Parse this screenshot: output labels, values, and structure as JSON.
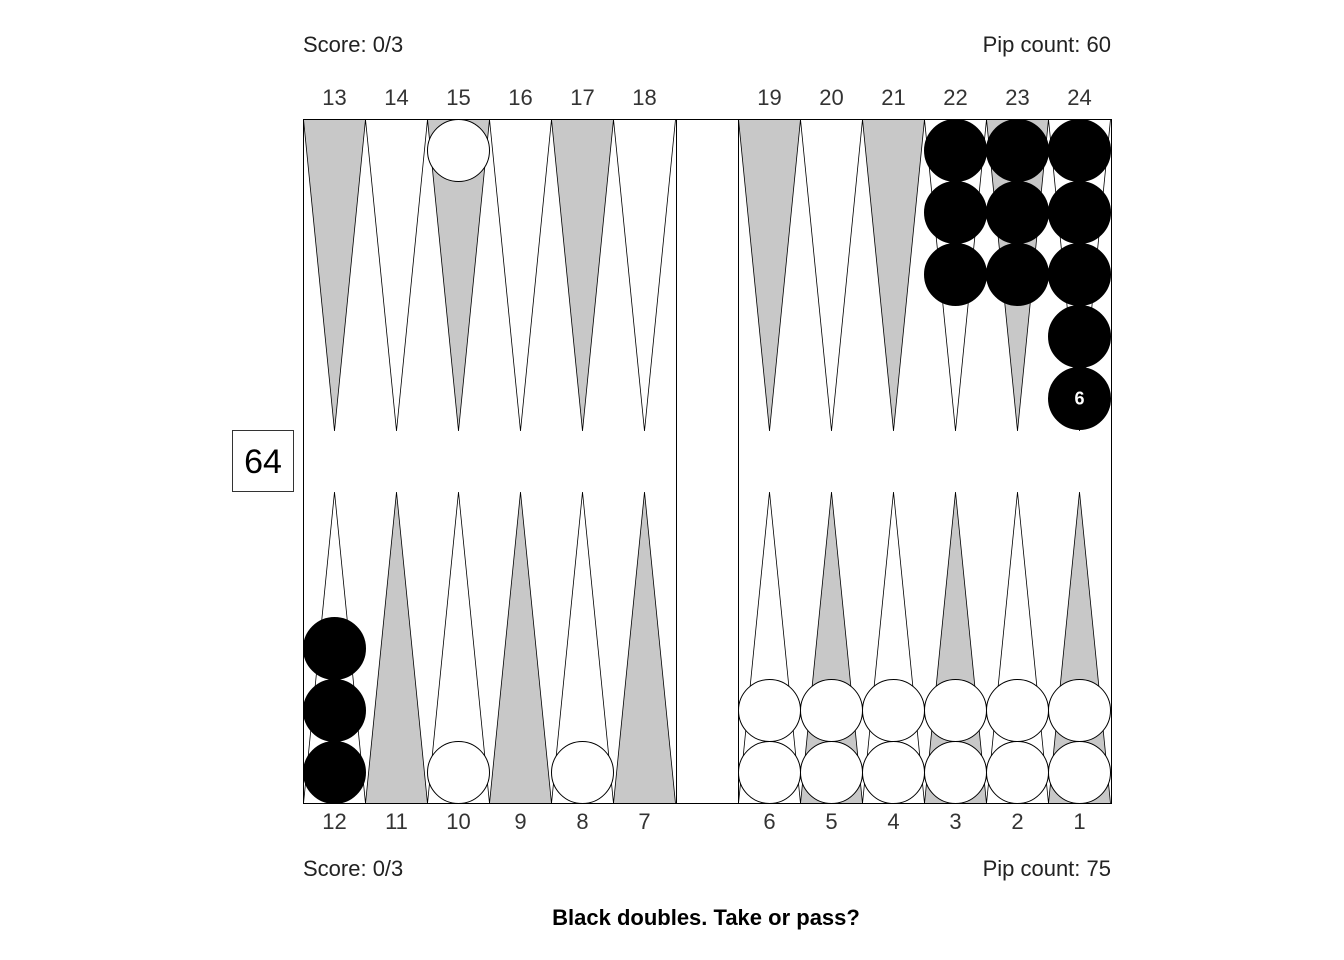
{
  "top_player": {
    "score": "Score: 0/3",
    "pip_count": "Pip count: 60"
  },
  "bottom_player": {
    "score": "Score: 0/3",
    "pip_count": "Pip count: 75"
  },
  "cube_value": "64",
  "prompt": "Black doubles. Take or pass?",
  "colors": {
    "dark_triangle": "#c8c8c8",
    "light_triangle": "#ffffff",
    "board_outline": "#000000",
    "black_checker": "#000000",
    "white_checker": "#ffffff"
  },
  "point_labels": {
    "top": [
      "13",
      "14",
      "15",
      "16",
      "17",
      "18",
      "19",
      "20",
      "21",
      "22",
      "23",
      "24"
    ],
    "bottom": [
      "12",
      "11",
      "10",
      "9",
      "8",
      "7",
      "6",
      "5",
      "4",
      "3",
      "2",
      "1"
    ]
  },
  "position": [
    {
      "point": 24,
      "color": "black",
      "count": 6,
      "label": "6"
    },
    {
      "point": 23,
      "color": "black",
      "count": 3
    },
    {
      "point": 22,
      "color": "black",
      "count": 3
    },
    {
      "point": 15,
      "color": "white",
      "count": 1
    },
    {
      "point": 12,
      "color": "black",
      "count": 3
    },
    {
      "point": 10,
      "color": "white",
      "count": 1
    },
    {
      "point": 8,
      "color": "white",
      "count": 1
    },
    {
      "point": 6,
      "color": "white",
      "count": 2
    },
    {
      "point": 5,
      "color": "white",
      "count": 2
    },
    {
      "point": 4,
      "color": "white",
      "count": 2
    },
    {
      "point": 3,
      "color": "white",
      "count": 2
    },
    {
      "point": 2,
      "color": "white",
      "count": 2
    },
    {
      "point": 1,
      "color": "white",
      "count": 2
    }
  ]
}
